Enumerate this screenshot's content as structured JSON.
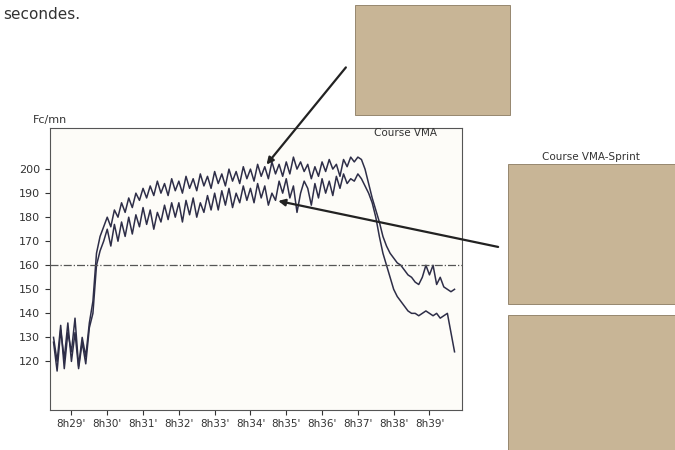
{
  "chart_data": {
    "type": "line",
    "caption": "secondes.",
    "y_label": "Fc/mn",
    "x": [
      28.5,
      28.6,
      28.7,
      28.8,
      28.9,
      29.0,
      29.1,
      29.2,
      29.3,
      29.4,
      29.5,
      29.6,
      29.7,
      29.8,
      29.9,
      30.0,
      30.1,
      30.2,
      30.3,
      30.4,
      30.5,
      30.6,
      30.7,
      30.8,
      30.9,
      31.0,
      31.1,
      31.2,
      31.3,
      31.4,
      31.5,
      31.6,
      31.7,
      31.8,
      31.9,
      32.0,
      32.1,
      32.2,
      32.3,
      32.4,
      32.5,
      32.6,
      32.7,
      32.8,
      32.9,
      33.0,
      33.1,
      33.2,
      33.3,
      33.4,
      33.5,
      33.6,
      33.7,
      33.8,
      33.9,
      34.0,
      34.1,
      34.2,
      34.3,
      34.4,
      34.5,
      34.6,
      34.7,
      34.8,
      34.9,
      35.0,
      35.1,
      35.2,
      35.3,
      35.4,
      35.5,
      35.6,
      35.7,
      35.8,
      35.9,
      36.0,
      36.1,
      36.2,
      36.3,
      36.4,
      36.5,
      36.6,
      36.7,
      36.8,
      36.9,
      37.0,
      37.1,
      37.2,
      37.3,
      37.4,
      37.5,
      37.6,
      37.7,
      37.8,
      37.9,
      38.0,
      38.1,
      38.2,
      38.3,
      38.4,
      38.5,
      38.6,
      38.7,
      38.8,
      38.9,
      39.0,
      39.1,
      39.2,
      39.3,
      39.4,
      39.5,
      39.6,
      39.7
    ],
    "series": [
      {
        "name": "Course VMA",
        "color": "#2e2e48",
        "values": [
          130,
          120,
          135,
          117,
          132,
          124,
          138,
          118,
          130,
          122,
          136,
          145,
          165,
          172,
          176,
          180,
          176,
          183,
          180,
          186,
          182,
          188,
          184,
          190,
          187,
          192,
          188,
          193,
          189,
          195,
          190,
          194,
          189,
          196,
          191,
          195,
          190,
          197,
          192,
          196,
          191,
          198,
          193,
          197,
          192,
          199,
          194,
          198,
          193,
          200,
          195,
          199,
          194,
          201,
          196,
          200,
          195,
          202,
          197,
          201,
          196,
          203,
          198,
          202,
          197,
          203,
          198,
          205,
          200,
          203,
          199,
          202,
          196,
          201,
          197,
          203,
          199,
          204,
          200,
          202,
          197,
          204,
          201,
          205,
          203,
          205,
          204,
          200,
          194,
          188,
          183,
          178,
          172,
          168,
          165,
          163,
          161,
          160,
          158,
          156,
          155,
          153,
          152,
          155,
          160,
          156,
          160,
          152,
          155,
          151,
          150,
          149,
          150
        ]
      },
      {
        "name": "Course VMA-Sprint",
        "color": "#2e2e48",
        "values": [
          128,
          116,
          133,
          121,
          136,
          120,
          132,
          117,
          128,
          119,
          134,
          140,
          160,
          166,
          170,
          175,
          168,
          177,
          170,
          178,
          172,
          180,
          173,
          181,
          176,
          184,
          177,
          183,
          175,
          182,
          178,
          185,
          179,
          186,
          180,
          186,
          178,
          187,
          181,
          188,
          180,
          186,
          182,
          189,
          183,
          190,
          183,
          191,
          185,
          192,
          184,
          190,
          186,
          193,
          187,
          192,
          186,
          194,
          188,
          193,
          185,
          190,
          187,
          195,
          190,
          196,
          188,
          193,
          182,
          190,
          195,
          192,
          185,
          194,
          188,
          196,
          190,
          195,
          189,
          197,
          192,
          198,
          194,
          196,
          195,
          198,
          196,
          193,
          190,
          186,
          180,
          172,
          165,
          160,
          155,
          150,
          147,
          145,
          143,
          141,
          140,
          140,
          139,
          140,
          141,
          140,
          139,
          140,
          138,
          139,
          140,
          132,
          124
        ]
      }
    ],
    "threshold": 160,
    "xlim": [
      28.4,
      39.9
    ],
    "xticks": [
      {
        "value": 29,
        "label": "8h29'"
      },
      {
        "value": 30,
        "label": "8h30'"
      },
      {
        "value": 31,
        "label": "8h31'"
      },
      {
        "value": 32,
        "label": "8h32'"
      },
      {
        "value": 33,
        "label": "8h33'"
      },
      {
        "value": 34,
        "label": "8h34'"
      },
      {
        "value": 35,
        "label": "8h35'"
      },
      {
        "value": 36,
        "label": "8h36'"
      },
      {
        "value": 37,
        "label": "8h37'"
      },
      {
        "value": 38,
        "label": "8h38'"
      },
      {
        "value": 39,
        "label": "8h39'"
      }
    ],
    "ylim": [
      100,
      217
    ],
    "yticks": [
      120,
      130,
      140,
      150,
      160,
      170,
      180,
      190,
      200
    ],
    "grid": false
  }
}
